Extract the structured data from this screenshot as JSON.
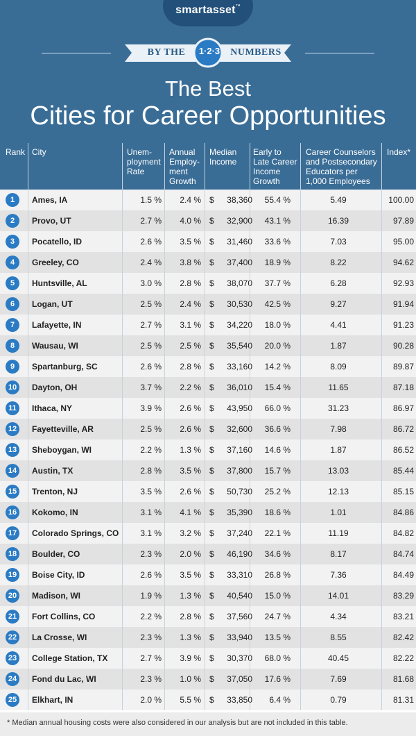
{
  "brand": {
    "name": "smartasset",
    "tm": "™"
  },
  "banner": {
    "left": "BY THE",
    "badge": "1·2·3",
    "right": "NUMBERS"
  },
  "title": {
    "line1": "The Best",
    "line2": "Cities for Career Opportunities"
  },
  "colors": {
    "header_bg": "#3a6d96",
    "logo_pill": "#22507a",
    "badge_bg": "#2a7bc4",
    "row_odd": "#f2f2f2",
    "row_even": "#e2e2e2",
    "banner_fill": "#eaf1f7"
  },
  "icons": {
    "rank_badge": "circle-badge"
  },
  "columns": {
    "rank": "Rank",
    "city": "City",
    "unemployment": "Unem-\nployment\nRate",
    "employment_growth": "Annual\nEmploy-\nment\nGrowth",
    "median_income": "Median\nIncome",
    "income_growth": "Early to\nLate Career\nIncome\nGrowth",
    "counselors": "Career Counselors\nand Postsecondary\nEducators per\n1,000 Employees",
    "index": "Index*"
  },
  "chart_data": {
    "type": "table",
    "title": "The Best Cities for Career Opportunities",
    "rows": [
      {
        "rank": "1",
        "city": "Ames, IA",
        "unemployment": "1.5 %",
        "employment_growth": "2.4 %",
        "median_income": "38,360",
        "income_growth": "55.4 %",
        "counselors": "5.49",
        "index": "100.00"
      },
      {
        "rank": "2",
        "city": "Provo, UT",
        "unemployment": "2.7 %",
        "employment_growth": "4.0 %",
        "median_income": "32,900",
        "income_growth": "43.1 %",
        "counselors": "16.39",
        "index": "97.89"
      },
      {
        "rank": "3",
        "city": "Pocatello, ID",
        "unemployment": "2.6 %",
        "employment_growth": "3.5 %",
        "median_income": "31,460",
        "income_growth": "33.6 %",
        "counselors": "7.03",
        "index": "95.00"
      },
      {
        "rank": "4",
        "city": "Greeley, CO",
        "unemployment": "2.4 %",
        "employment_growth": "3.8 %",
        "median_income": "37,400",
        "income_growth": "18.9 %",
        "counselors": "8.22",
        "index": "94.62"
      },
      {
        "rank": "5",
        "city": "Huntsville, AL",
        "unemployment": "3.0 %",
        "employment_growth": "2.8 %",
        "median_income": "38,070",
        "income_growth": "37.7 %",
        "counselors": "6.28",
        "index": "92.93"
      },
      {
        "rank": "6",
        "city": "Logan, UT",
        "unemployment": "2.5 %",
        "employment_growth": "2.4 %",
        "median_income": "30,530",
        "income_growth": "42.5 %",
        "counselors": "9.27",
        "index": "91.94"
      },
      {
        "rank": "7",
        "city": "Lafayette, IN",
        "unemployment": "2.7 %",
        "employment_growth": "3.1 %",
        "median_income": "34,220",
        "income_growth": "18.0 %",
        "counselors": "4.41",
        "index": "91.23"
      },
      {
        "rank": "8",
        "city": "Wausau, WI",
        "unemployment": "2.5 %",
        "employment_growth": "2.5 %",
        "median_income": "35,540",
        "income_growth": "20.0 %",
        "counselors": "1.87",
        "index": "90.28"
      },
      {
        "rank": "9",
        "city": "Spartanburg, SC",
        "unemployment": "2.6 %",
        "employment_growth": "2.8 %",
        "median_income": "33,160",
        "income_growth": "14.2 %",
        "counselors": "8.09",
        "index": "89.87"
      },
      {
        "rank": "10",
        "city": "Dayton, OH",
        "unemployment": "3.7 %",
        "employment_growth": "2.2 %",
        "median_income": "36,010",
        "income_growth": "15.4 %",
        "counselors": "11.65",
        "index": "87.18"
      },
      {
        "rank": "11",
        "city": "Ithaca, NY",
        "unemployment": "3.9 %",
        "employment_growth": "2.6 %",
        "median_income": "43,950",
        "income_growth": "66.0 %",
        "counselors": "31.23",
        "index": "86.97"
      },
      {
        "rank": "12",
        "city": "Fayetteville, AR",
        "unemployment": "2.5 %",
        "employment_growth": "2.6 %",
        "median_income": "32,600",
        "income_growth": "36.6 %",
        "counselors": "7.98",
        "index": "86.72"
      },
      {
        "rank": "13",
        "city": "Sheboygan, WI",
        "unemployment": "2.2 %",
        "employment_growth": "1.3 %",
        "median_income": "37,160",
        "income_growth": "14.6 %",
        "counselors": "1.87",
        "index": "86.52"
      },
      {
        "rank": "14",
        "city": "Austin, TX",
        "unemployment": "2.8 %",
        "employment_growth": "3.5 %",
        "median_income": "37,800",
        "income_growth": "15.7 %",
        "counselors": "13.03",
        "index": "85.44"
      },
      {
        "rank": "15",
        "city": "Trenton, NJ",
        "unemployment": "3.5 %",
        "employment_growth": "2.6 %",
        "median_income": "50,730",
        "income_growth": "25.2 %",
        "counselors": "12.13",
        "index": "85.15"
      },
      {
        "rank": "16",
        "city": "Kokomo, IN",
        "unemployment": "3.1 %",
        "employment_growth": "4.1 %",
        "median_income": "35,390",
        "income_growth": "18.6 %",
        "counselors": "1.01",
        "index": "84.86"
      },
      {
        "rank": "17",
        "city": "Colorado Springs, CO",
        "unemployment": "3.1 %",
        "employment_growth": "3.2 %",
        "median_income": "37,240",
        "income_growth": "22.1 %",
        "counselors": "11.19",
        "index": "84.82"
      },
      {
        "rank": "18",
        "city": "Boulder, CO",
        "unemployment": "2.3 %",
        "employment_growth": "2.0 %",
        "median_income": "46,190",
        "income_growth": "34.6 %",
        "counselors": "8.17",
        "index": "84.74"
      },
      {
        "rank": "19",
        "city": "Boise City, ID",
        "unemployment": "2.6 %",
        "employment_growth": "3.5 %",
        "median_income": "33,310",
        "income_growth": "26.8 %",
        "counselors": "7.36",
        "index": "84.49"
      },
      {
        "rank": "20",
        "city": "Madison, WI",
        "unemployment": "1.9 %",
        "employment_growth": "1.3 %",
        "median_income": "40,540",
        "income_growth": "15.0 %",
        "counselors": "14.01",
        "index": "83.29"
      },
      {
        "rank": "21",
        "city": "Fort Collins, CO",
        "unemployment": "2.2 %",
        "employment_growth": "2.8 %",
        "median_income": "37,560",
        "income_growth": "24.7 %",
        "counselors": "4.34",
        "index": "83.21"
      },
      {
        "rank": "22",
        "city": "La Crosse, WI",
        "unemployment": "2.3 %",
        "employment_growth": "1.3 %",
        "median_income": "33,940",
        "income_growth": "13.5 %",
        "counselors": "8.55",
        "index": "82.42"
      },
      {
        "rank": "23",
        "city": "College Station, TX",
        "unemployment": "2.7 %",
        "employment_growth": "3.9 %",
        "median_income": "30,370",
        "income_growth": "68.0 %",
        "counselors": "40.45",
        "index": "82.22"
      },
      {
        "rank": "24",
        "city": "Fond du Lac, WI",
        "unemployment": "2.3 %",
        "employment_growth": "1.0 %",
        "median_income": "37,050",
        "income_growth": "17.6 %",
        "counselors": "7.69",
        "index": "81.68"
      },
      {
        "rank": "25",
        "city": "Elkhart, IN",
        "unemployment": "2.0 %",
        "employment_growth": "5.5 %",
        "median_income": "33,850",
        "income_growth": "6.4 %",
        "counselors": "0.79",
        "index": "81.31"
      }
    ]
  },
  "currency_symbol": "$",
  "footnote": "* Median annual housing costs were also considered in our analysis but are not included in this table."
}
